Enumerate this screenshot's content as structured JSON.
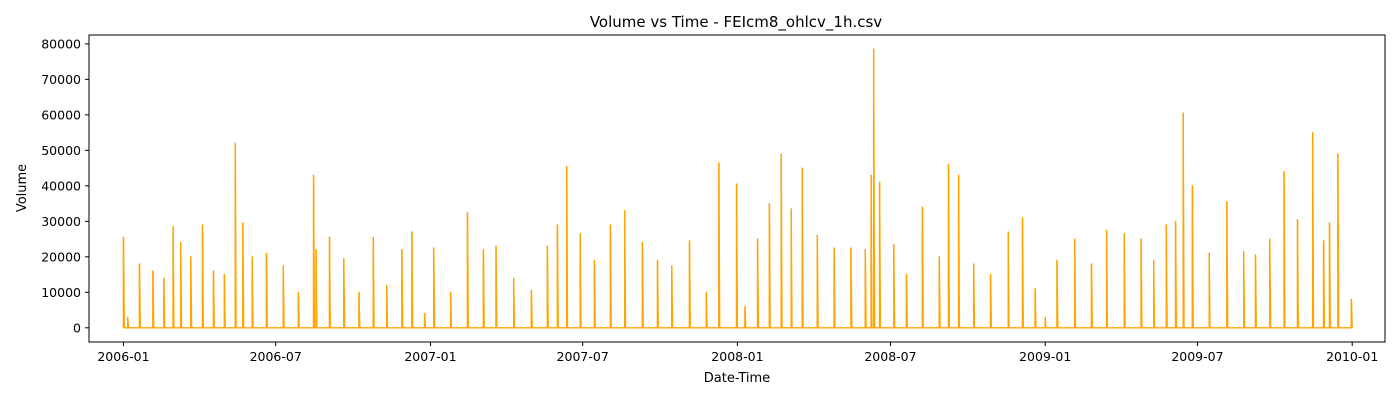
{
  "chart_data": {
    "type": "line",
    "title": "Volume vs Time - FEIcm8_ohlcv_1h.csv",
    "xlabel": "Date-Time",
    "ylabel": "Volume",
    "xlim": [
      "2005-11-21",
      "2010-02-09"
    ],
    "ylim": [
      -4000,
      82500
    ],
    "x_ticks": [
      "2006-01",
      "2006-07",
      "2007-01",
      "2007-07",
      "2008-01",
      "2008-07",
      "2009-01",
      "2009-07",
      "2010-01"
    ],
    "y_ticks": [
      0,
      10000,
      20000,
      30000,
      40000,
      50000,
      60000,
      70000,
      80000
    ],
    "grid": false,
    "legend": "none",
    "series": [
      {
        "color": "#FFA500",
        "x": [
          "2006-01-01",
          "2006-01-06",
          "2006-01-20",
          "2006-02-05",
          "2006-02-18",
          "2006-03-01",
          "2006-03-10",
          "2006-03-22",
          "2006-04-05",
          "2006-04-18",
          "2006-05-01",
          "2006-05-14",
          "2006-05-23",
          "2006-06-03",
          "2006-06-20",
          "2006-07-10",
          "2006-07-28",
          "2006-08-15",
          "2006-08-18",
          "2006-09-03",
          "2006-09-20",
          "2006-10-08",
          "2006-10-25",
          "2006-11-10",
          "2006-11-28",
          "2006-12-10",
          "2006-12-25",
          "2007-01-05",
          "2007-01-25",
          "2007-02-14",
          "2007-03-05",
          "2007-03-20",
          "2007-04-10",
          "2007-05-01",
          "2007-05-20",
          "2007-06-01",
          "2007-06-12",
          "2007-06-28",
          "2007-07-15",
          "2007-08-03",
          "2007-08-20",
          "2007-09-10",
          "2007-09-28",
          "2007-10-15",
          "2007-11-05",
          "2007-11-25",
          "2007-12-10",
          "2007-12-31",
          "2008-01-10",
          "2008-01-25",
          "2008-02-08",
          "2008-02-22",
          "2008-03-05",
          "2008-03-18",
          "2008-04-05",
          "2008-04-25",
          "2008-05-15",
          "2008-06-01",
          "2008-06-08",
          "2008-06-11",
          "2008-06-18",
          "2008-07-05",
          "2008-07-20",
          "2008-08-08",
          "2008-08-28",
          "2008-09-08",
          "2008-09-20",
          "2008-10-08",
          "2008-10-28",
          "2008-11-18",
          "2008-12-05",
          "2008-12-20",
          "2009-01-01",
          "2009-01-15",
          "2009-02-05",
          "2009-02-25",
          "2009-03-15",
          "2009-04-05",
          "2009-04-25",
          "2009-05-10",
          "2009-05-25",
          "2009-06-05",
          "2009-06-14",
          "2009-06-25",
          "2009-07-15",
          "2009-08-05",
          "2009-08-25",
          "2009-09-08",
          "2009-09-25",
          "2009-10-12",
          "2009-10-28",
          "2009-11-15",
          "2009-11-28",
          "2009-12-05",
          "2009-12-15",
          "2009-12-31"
        ],
        "y": [
          25500,
          3000,
          18000,
          16000,
          14000,
          28500,
          24000,
          20000,
          29000,
          16000,
          15000,
          52000,
          29500,
          20000,
          21000,
          17500,
          10000,
          43000,
          22000,
          25500,
          19500,
          10000,
          25500,
          12000,
          22000,
          27000,
          4000,
          22500,
          10000,
          32500,
          22000,
          23000,
          14000,
          10500,
          23000,
          29000,
          45500,
          26500,
          19000,
          29000,
          33000,
          24000,
          19000,
          17500,
          24500,
          10000,
          46500,
          40500,
          6000,
          25000,
          35000,
          49000,
          33500,
          45000,
          26000,
          22500,
          22500,
          22000,
          43000,
          78500,
          41000,
          23500,
          15000,
          34000,
          20000,
          46000,
          43000,
          18000,
          15000,
          27000,
          31000,
          11000,
          3000,
          19000,
          25000,
          18000,
          27500,
          26500,
          25000,
          19000,
          29000,
          30000,
          60500,
          40000,
          21000,
          35500,
          21500,
          20500,
          25000,
          44000,
          30500,
          55000,
          24500,
          29500,
          49000,
          8000
        ]
      }
    ]
  }
}
